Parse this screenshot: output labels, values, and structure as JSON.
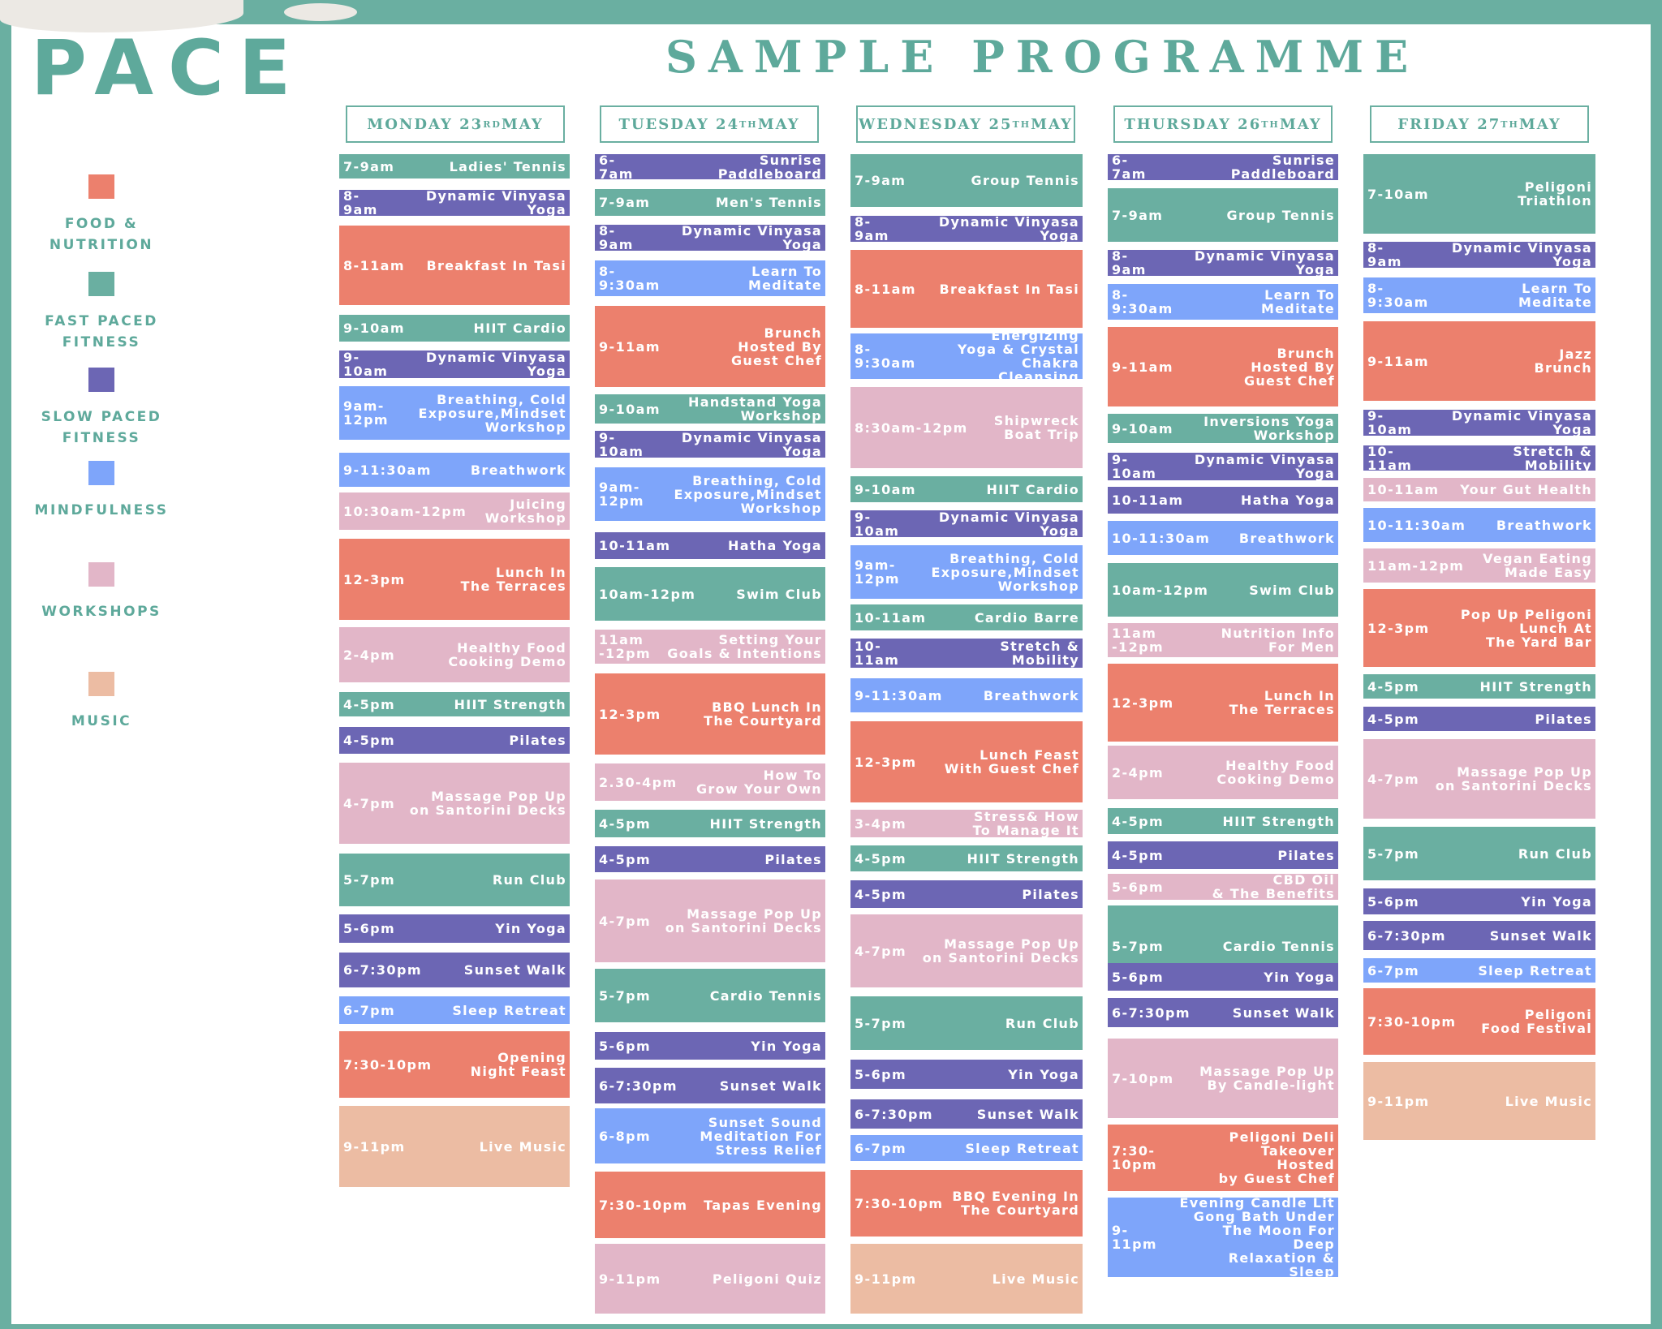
{
  "brand": "PACE",
  "title": "SAMPLE PROGRAMME",
  "colors": {
    "food": "#ec806d",
    "fast": "#6aafa1",
    "slow": "#6c66b4",
    "mind": "#7ea5fa",
    "work": "#e2b6c8",
    "music": "#ecbca3",
    "heading": "#5ea99b"
  },
  "legend": [
    {
      "cat": "food",
      "label": "FOOD &\nNUTRITION"
    },
    {
      "cat": "fast",
      "label": "FAST PACED\nFITNESS"
    },
    {
      "cat": "slow",
      "label": "SLOW PACED\nFITNESS"
    },
    {
      "cat": "mind",
      "label": "MINDFULNESS"
    },
    {
      "cat": "work",
      "label": "WORKSHOPS"
    },
    {
      "cat": "music",
      "label": "MUSIC"
    }
  ],
  "days": [
    {
      "name": "MONDAY 23",
      "sup": "RD",
      "month": " MAY",
      "events": [
        {
          "time": "7-9am",
          "name": "Ladies' Tennis",
          "cat": "fast"
        },
        {
          "time": "8-9am",
          "name": "Dynamic Vinyasa Yoga",
          "cat": "slow"
        },
        {
          "time": "8-11am",
          "name": "Breakfast In Tasi",
          "cat": "food"
        },
        {
          "time": "9-10am",
          "name": "HIIT Cardio",
          "cat": "fast"
        },
        {
          "time": "9-10am",
          "name": "Dynamic Vinyasa Yoga",
          "cat": "slow"
        },
        {
          "time": "9am-12pm",
          "name": "Breathing, Cold\nExposure,Mindset\nWorkshop",
          "cat": "mind"
        },
        {
          "time": "9-11:30am",
          "name": "Breathwork",
          "cat": "mind"
        },
        {
          "time": "10:30am-12pm",
          "name": "Juicing\nWorkshop",
          "cat": "work"
        },
        {
          "time": "12-3pm",
          "name": "Lunch In\nThe Terraces",
          "cat": "food"
        },
        {
          "time": "2-4pm",
          "name": "Healthy Food\nCooking Demo",
          "cat": "work"
        },
        {
          "time": "4-5pm",
          "name": "HIIT Strength",
          "cat": "fast"
        },
        {
          "time": "4-5pm",
          "name": "Pilates",
          "cat": "slow"
        },
        {
          "time": "4-7pm",
          "name": "Massage Pop Up\non Santorini Decks",
          "cat": "work"
        },
        {
          "time": "5-7pm",
          "name": "Run Club",
          "cat": "fast"
        },
        {
          "time": "5-6pm",
          "name": "Yin Yoga",
          "cat": "slow"
        },
        {
          "time": "6-7:30pm",
          "name": "Sunset Walk",
          "cat": "slow"
        },
        {
          "time": "6-7pm",
          "name": "Sleep Retreat",
          "cat": "mind"
        },
        {
          "time": "7:30-10pm",
          "name": "Opening\nNight Feast",
          "cat": "food"
        },
        {
          "time": "9-11pm",
          "name": "Live Music",
          "cat": "music"
        }
      ]
    },
    {
      "name": "TUESDAY 24",
      "sup": "TH",
      "month": " MAY",
      "events": [
        {
          "time": "6-7am",
          "name": "Sunrise Paddleboard",
          "cat": "slow"
        },
        {
          "time": "7-9am",
          "name": "Men's Tennis",
          "cat": "fast"
        },
        {
          "time": "8-9am",
          "name": "Dynamic Vinyasa Yoga",
          "cat": "slow"
        },
        {
          "time": "8-9:30am",
          "name": "Learn To Meditate",
          "cat": "mind"
        },
        {
          "time": "9-11am",
          "name": "Brunch\nHosted By\nGuest Chef",
          "cat": "food"
        },
        {
          "time": "9-10am",
          "name": "Handstand Yoga\nWorkshop",
          "cat": "fast"
        },
        {
          "time": "9-10am",
          "name": "Dynamic Vinyasa Yoga",
          "cat": "slow"
        },
        {
          "time": "9am-12pm",
          "name": "Breathing, Cold\nExposure,Mindset\nWorkshop",
          "cat": "mind"
        },
        {
          "time": "10-11am",
          "name": "Hatha Yoga",
          "cat": "slow"
        },
        {
          "time": "10am-12pm",
          "name": "Swim Club",
          "cat": "fast"
        },
        {
          "time": "11am\n-12pm",
          "name": "Setting Your\nGoals & Intentions",
          "cat": "work"
        },
        {
          "time": "12-3pm",
          "name": "BBQ Lunch In\nThe Courtyard",
          "cat": "food"
        },
        {
          "time": "2.30-4pm",
          "name": "How To\nGrow Your Own",
          "cat": "work"
        },
        {
          "time": "4-5pm",
          "name": "HIIT Strength",
          "cat": "fast"
        },
        {
          "time": "4-5pm",
          "name": "Pilates",
          "cat": "slow"
        },
        {
          "time": "4-7pm",
          "name": "Massage Pop Up\non Santorini Decks",
          "cat": "work"
        },
        {
          "time": "5-7pm",
          "name": "Cardio Tennis",
          "cat": "fast"
        },
        {
          "time": "5-6pm",
          "name": "Yin Yoga",
          "cat": "slow"
        },
        {
          "time": "6-7:30pm",
          "name": "Sunset Walk",
          "cat": "slow"
        },
        {
          "time": "6-8pm",
          "name": "Sunset Sound\nMeditation For\nStress Relief",
          "cat": "mind"
        },
        {
          "time": "7:30-10pm",
          "name": "Tapas Evening",
          "cat": "food"
        },
        {
          "time": "9-11pm",
          "name": "Peligoni Quiz",
          "cat": "work"
        }
      ]
    },
    {
      "name": "WEDNESDAY 25",
      "sup": "TH",
      "month": " MAY",
      "events": [
        {
          "time": "7-9am",
          "name": "Group Tennis",
          "cat": "fast"
        },
        {
          "time": "8-9am",
          "name": "Dynamic Vinyasa Yoga",
          "cat": "slow"
        },
        {
          "time": "8-11am",
          "name": "Breakfast In Tasi",
          "cat": "food"
        },
        {
          "time": "8-9:30am",
          "name": "Energizing\nYoga & Crystal\nChakra Cleansing",
          "cat": "mind"
        },
        {
          "time": "8:30am-12pm",
          "name": "Shipwreck\nBoat Trip",
          "cat": "work"
        },
        {
          "time": "9-10am",
          "name": "HIIT Cardio",
          "cat": "fast"
        },
        {
          "time": "9-10am",
          "name": "Dynamic Vinyasa Yoga",
          "cat": "slow"
        },
        {
          "time": "9am-12pm",
          "name": "Breathing, Cold\nExposure,Mindset\nWorkshop",
          "cat": "mind"
        },
        {
          "time": "10-11am",
          "name": "Cardio Barre",
          "cat": "fast"
        },
        {
          "time": "10-11am",
          "name": "Stretch & Mobility",
          "cat": "slow"
        },
        {
          "time": "9-11:30am",
          "name": "Breathwork",
          "cat": "mind"
        },
        {
          "time": "12-3pm",
          "name": "Lunch Feast\nWith Guest Chef",
          "cat": "food"
        },
        {
          "time": "3-4pm",
          "name": "Stress& How\nTo Manage It",
          "cat": "work"
        },
        {
          "time": "4-5pm",
          "name": "HIIT Strength",
          "cat": "fast"
        },
        {
          "time": "4-5pm",
          "name": "Pilates",
          "cat": "slow"
        },
        {
          "time": "4-7pm",
          "name": "Massage Pop Up\non Santorini Decks",
          "cat": "work"
        },
        {
          "time": "5-7pm",
          "name": "Run Club",
          "cat": "fast"
        },
        {
          "time": "5-6pm",
          "name": "Yin Yoga",
          "cat": "slow"
        },
        {
          "time": "6-7:30pm",
          "name": "Sunset Walk",
          "cat": "slow"
        },
        {
          "time": "6-7pm",
          "name": "Sleep Retreat",
          "cat": "mind"
        },
        {
          "time": "7:30-10pm",
          "name": "BBQ Evening In\nThe Courtyard",
          "cat": "food"
        },
        {
          "time": "9-11pm",
          "name": "Live Music",
          "cat": "music"
        }
      ]
    },
    {
      "name": "THURSDAY 26",
      "sup": "TH",
      "month": " MAY",
      "events": [
        {
          "time": "6-7am",
          "name": "Sunrise Paddleboard",
          "cat": "slow"
        },
        {
          "time": "7-9am",
          "name": "Group Tennis",
          "cat": "fast"
        },
        {
          "time": "8-9am",
          "name": "Dynamic Vinyasa Yoga",
          "cat": "slow"
        },
        {
          "time": "8-9:30am",
          "name": "Learn To Meditate",
          "cat": "mind"
        },
        {
          "time": "9-11am",
          "name": "Brunch\nHosted By\nGuest Chef",
          "cat": "food"
        },
        {
          "time": "9-10am",
          "name": "Inversions Yoga\nWorkshop",
          "cat": "fast"
        },
        {
          "time": "9-10am",
          "name": "Dynamic Vinyasa Yoga",
          "cat": "slow"
        },
        {
          "time": "10-11am",
          "name": "Hatha Yoga",
          "cat": "slow"
        },
        {
          "time": "10-11:30am",
          "name": "Breathwork",
          "cat": "mind"
        },
        {
          "time": "10am-12pm",
          "name": "Swim Club",
          "cat": "fast"
        },
        {
          "time": "11am\n-12pm",
          "name": "Nutrition Info\nFor Men",
          "cat": "work"
        },
        {
          "time": "12-3pm",
          "name": "Lunch In\nThe Terraces",
          "cat": "food"
        },
        {
          "time": "2-4pm",
          "name": "Healthy Food\nCooking Demo",
          "cat": "work"
        },
        {
          "time": "4-5pm",
          "name": "HIIT Strength",
          "cat": "fast"
        },
        {
          "time": "4-5pm",
          "name": "Pilates",
          "cat": "slow"
        },
        {
          "time": "5-6pm",
          "name": "CBD Oil\n& The Benefits",
          "cat": "work"
        },
        {
          "time": "5-7pm",
          "name": "Cardio Tennis",
          "cat": "fast"
        },
        {
          "time": "5-6pm",
          "name": "Yin Yoga",
          "cat": "slow"
        },
        {
          "time": "6-7:30pm",
          "name": "Sunset Walk",
          "cat": "slow"
        },
        {
          "time": "7-10pm",
          "name": "Massage Pop Up\nBy Candle-light",
          "cat": "work"
        },
        {
          "time": "7:30-10pm",
          "name": "Peligoni Deli\nTakeover Hosted\nby Guest Chef",
          "cat": "food"
        },
        {
          "time": "9-11pm",
          "name": "Evening Candle Lit\nGong Bath Under\nThe Moon For Deep\nRelaxation & Sleep",
          "cat": "mind"
        }
      ]
    },
    {
      "name": "FRIDAY 27",
      "sup": "TH",
      "month": " MAY",
      "events": [
        {
          "time": "7-10am",
          "name": "Peligoni\nTriathlon",
          "cat": "fast"
        },
        {
          "time": "8-9am",
          "name": "Dynamic Vinyasa Yoga",
          "cat": "slow"
        },
        {
          "time": "8-9:30am",
          "name": "Learn To Meditate",
          "cat": "mind"
        },
        {
          "time": "9-11am",
          "name": "Jazz\nBrunch",
          "cat": "food"
        },
        {
          "time": "9-10am",
          "name": "Dynamic Vinyasa Yoga",
          "cat": "slow"
        },
        {
          "time": "10-11am",
          "name": "Stretch & Mobility",
          "cat": "slow"
        },
        {
          "time": "10-11am",
          "name": "Your Gut Health",
          "cat": "work"
        },
        {
          "time": "10-11:30am",
          "name": "Breathwork",
          "cat": "mind"
        },
        {
          "time": "11am-12pm",
          "name": "Vegan Eating\nMade Easy",
          "cat": "work"
        },
        {
          "time": "12-3pm",
          "name": "Pop Up Peligoni\nLunch At\nThe Yard Bar",
          "cat": "food"
        },
        {
          "time": "4-5pm",
          "name": "HIIT Strength",
          "cat": "fast"
        },
        {
          "time": "4-5pm",
          "name": "Pilates",
          "cat": "slow"
        },
        {
          "time": "4-7pm",
          "name": "Massage Pop Up\non Santorini Decks",
          "cat": "work"
        },
        {
          "time": "5-7pm",
          "name": "Run Club",
          "cat": "fast"
        },
        {
          "time": "5-6pm",
          "name": "Yin Yoga",
          "cat": "slow"
        },
        {
          "time": "6-7:30pm",
          "name": "Sunset Walk",
          "cat": "slow"
        },
        {
          "time": "6-7pm",
          "name": "Sleep Retreat",
          "cat": "mind"
        },
        {
          "time": "7:30-10pm",
          "name": "Peligoni\nFood Festival",
          "cat": "food"
        },
        {
          "time": "9-11pm",
          "name": "Live Music",
          "cat": "music"
        }
      ]
    }
  ]
}
